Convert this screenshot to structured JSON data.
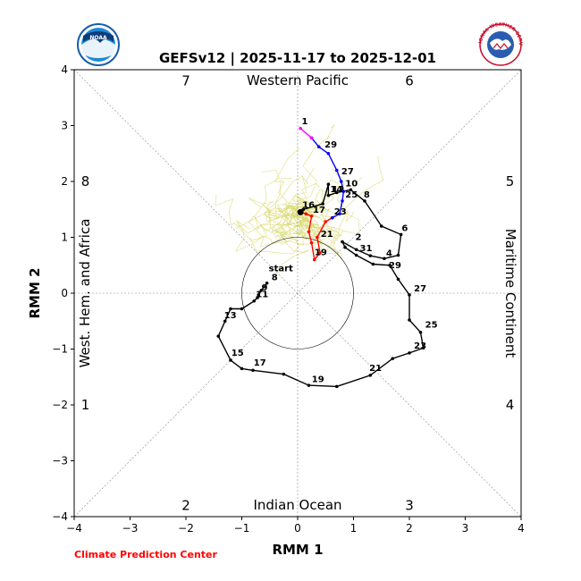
{
  "chart_data": {
    "type": "line",
    "title": "GEFSv12 | 2025-11-17 to 2025-12-01",
    "xlabel": "RMM 1",
    "ylabel": "RMM 2",
    "xlim": [
      -4,
      4
    ],
    "ylim": [
      -4,
      4
    ],
    "xticks": [
      "−4",
      "−3",
      "−2",
      "−1",
      "0",
      "1",
      "2",
      "3",
      "4"
    ],
    "yticks": [
      "−4",
      "−3",
      "−2",
      "−1",
      "0",
      "1",
      "2",
      "3",
      "4"
    ],
    "grid": false,
    "region_labels": {
      "top": "Western Pacific",
      "bottom": "Indian Ocean",
      "left": "West. Hem. and Africa",
      "right": "Maritime Continent"
    },
    "phase_labels": [
      {
        "text": "1",
        "x": -3.8,
        "y": -2.0
      },
      {
        "text": "2",
        "x": -2.0,
        "y": -3.8
      },
      {
        "text": "3",
        "x": 2.0,
        "y": -3.8
      },
      {
        "text": "4",
        "x": 3.8,
        "y": -2.0
      },
      {
        "text": "5",
        "x": 3.8,
        "y": 2.0
      },
      {
        "text": "6",
        "x": 2.0,
        "y": 3.8
      },
      {
        "text": "7",
        "x": -2.0,
        "y": 3.8
      },
      {
        "text": "8",
        "x": -3.8,
        "y": 2.0
      }
    ],
    "series": [
      {
        "color": "#000000",
        "points": [
          [
            -0.55,
            0.18
          ],
          [
            -0.65,
            0.05
          ],
          [
            -0.7,
            -0.03
          ],
          [
            -0.72,
            -0.08
          ],
          [
            -0.78,
            -0.14
          ],
          [
            -1.0,
            -0.28
          ],
          [
            -1.2,
            -0.28
          ],
          [
            -1.3,
            -0.5
          ],
          [
            -1.42,
            -0.77
          ],
          [
            -1.2,
            -1.2
          ],
          [
            -1.0,
            -1.35
          ],
          [
            -0.8,
            -1.38
          ],
          [
            -0.25,
            -1.45
          ],
          [
            0.2,
            -1.65
          ],
          [
            0.7,
            -1.67
          ],
          [
            1.3,
            -1.47
          ],
          [
            1.7,
            -1.17
          ],
          [
            2.0,
            -1.07
          ],
          [
            2.25,
            -0.98
          ],
          [
            2.2,
            -0.7
          ],
          [
            2.0,
            -0.48
          ],
          [
            2.0,
            -0.03
          ],
          [
            1.8,
            0.25
          ],
          [
            1.65,
            0.5
          ],
          [
            1.35,
            0.52
          ],
          [
            1.05,
            0.68
          ],
          [
            0.85,
            0.82
          ],
          [
            0.8,
            0.92
          ],
          [
            1.05,
            0.78
          ],
          [
            1.3,
            0.67
          ],
          [
            1.55,
            0.62
          ],
          [
            1.8,
            0.68
          ],
          [
            1.85,
            1.05
          ],
          [
            1.5,
            1.2
          ],
          [
            1.2,
            1.65
          ],
          [
            0.95,
            1.85
          ],
          [
            0.7,
            1.8
          ],
          [
            0.55,
            1.75
          ],
          [
            0.55,
            1.95
          ],
          [
            0.45,
            1.6
          ],
          [
            0.1,
            1.5
          ],
          [
            0.05,
            1.45
          ]
        ]
      },
      {
        "color": "#ff0000",
        "points": [
          [
            0.05,
            1.45
          ],
          [
            0.15,
            1.42
          ],
          [
            0.25,
            1.38
          ],
          [
            0.2,
            1.1
          ],
          [
            0.25,
            0.9
          ],
          [
            0.3,
            0.6
          ],
          [
            0.4,
            0.72
          ],
          [
            0.35,
            1.0
          ],
          [
            0.5,
            1.28
          ],
          [
            0.62,
            1.35
          ]
        ]
      },
      {
        "color": "#0000ff",
        "points": [
          [
            0.62,
            1.35
          ],
          [
            0.75,
            1.42
          ],
          [
            0.8,
            1.65
          ],
          [
            0.82,
            1.82
          ],
          [
            0.78,
            2.0
          ],
          [
            0.7,
            2.2
          ],
          [
            0.55,
            2.5
          ],
          [
            0.38,
            2.62
          ],
          [
            0.25,
            2.78
          ]
        ]
      },
      {
        "color": "#ff00ff",
        "points": [
          [
            0.25,
            2.78
          ],
          [
            0.05,
            2.95
          ]
        ]
      }
    ],
    "point_labels": [
      {
        "text": "start",
        "x": -0.55,
        "y": 0.36
      },
      {
        "text": "8",
        "x": -0.5,
        "y": 0.2
      },
      {
        "text": "9",
        "x": -0.68,
        "y": 0.02
      },
      {
        "text": "11",
        "x": -0.78,
        "y": -0.1
      },
      {
        "text": "13",
        "x": -1.35,
        "y": -0.48
      },
      {
        "text": "15",
        "x": -1.22,
        "y": -1.15
      },
      {
        "text": "17",
        "x": -0.82,
        "y": -1.33
      },
      {
        "text": "19",
        "x": 0.22,
        "y": -1.62
      },
      {
        "text": "21",
        "x": 1.25,
        "y": -1.42
      },
      {
        "text": "23",
        "x": 2.05,
        "y": -1.02
      },
      {
        "text": "25",
        "x": 2.25,
        "y": -0.65
      },
      {
        "text": "27",
        "x": 2.05,
        "y": 0.0
      },
      {
        "text": "29",
        "x": 1.6,
        "y": 0.42
      },
      {
        "text": "4",
        "x": 1.55,
        "y": 0.63
      },
      {
        "text": "31",
        "x": 1.08,
        "y": 0.72
      },
      {
        "text": "2",
        "x": 1.0,
        "y": 0.92
      },
      {
        "text": "6",
        "x": 1.83,
        "y": 1.08
      },
      {
        "text": "8",
        "x": 1.15,
        "y": 1.68
      },
      {
        "text": "10",
        "x": 0.82,
        "y": 1.88
      },
      {
        "text": "12",
        "x": 0.58,
        "y": 1.78
      },
      {
        "text": "14",
        "x": 0.55,
        "y": 1.78
      },
      {
        "text": "16",
        "x": 0.05,
        "y": 1.5
      },
      {
        "text": "17",
        "x": 0.24,
        "y": 1.41
      },
      {
        "text": "19",
        "x": 0.27,
        "y": 0.65
      },
      {
        "text": "21",
        "x": 0.38,
        "y": 0.98
      },
      {
        "text": "23",
        "x": 0.62,
        "y": 1.38
      },
      {
        "text": "25",
        "x": 0.82,
        "y": 1.68
      },
      {
        "text": "27",
        "x": 0.75,
        "y": 2.1
      },
      {
        "text": "29",
        "x": 0.45,
        "y": 2.58
      },
      {
        "text": "1",
        "x": 0.04,
        "y": 2.99
      }
    ]
  },
  "credit": "Climate Prediction Center",
  "logos": {
    "left": {
      "name": "noaa-logo",
      "text": "NOAA"
    },
    "right": {
      "name": "nws-logo",
      "text": "NATIONAL WEATHER SERVICE"
    }
  }
}
